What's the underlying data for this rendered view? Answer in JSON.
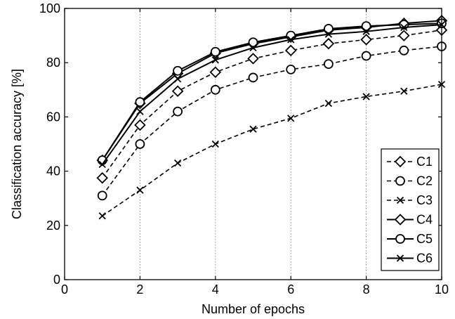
{
  "chart_data": {
    "type": "line",
    "title": "",
    "xlabel": "Number of epochs",
    "ylabel": "Classification accuracy [%]",
    "xlim": [
      0,
      10
    ],
    "ylim": [
      0,
      100
    ],
    "xticks": [
      0,
      2,
      4,
      6,
      8,
      10
    ],
    "yticks": [
      0,
      20,
      40,
      60,
      80,
      100
    ],
    "grid": "vertical dotted at x ticks",
    "legend_position": "lower-right",
    "x": [
      1,
      2,
      3,
      4,
      5,
      6,
      7,
      8,
      9,
      10
    ],
    "series": [
      {
        "name": "C1",
        "line": "dashed",
        "marker": "diamond",
        "values": [
          37.5,
          57,
          69.5,
          76.5,
          81.5,
          84.5,
          87,
          88.5,
          90,
          92
        ]
      },
      {
        "name": "C2",
        "line": "dashed",
        "marker": "circle",
        "values": [
          31,
          50,
          62,
          70,
          74.5,
          77.5,
          79.5,
          82.5,
          84.5,
          86
        ]
      },
      {
        "name": "C3",
        "line": "dashed",
        "marker": "x",
        "values": [
          23.5,
          33,
          43,
          50,
          55.5,
          59.5,
          65,
          67.5,
          69.5,
          72
        ]
      },
      {
        "name": "C4",
        "line": "solid",
        "marker": "diamond",
        "values": [
          44,
          65,
          76,
          83.5,
          87,
          89.5,
          92,
          93,
          94.5,
          95.5
        ]
      },
      {
        "name": "C5",
        "line": "solid",
        "marker": "circle",
        "values": [
          44,
          65.5,
          77,
          84,
          87.5,
          90,
          92.5,
          93.5,
          94,
          94.5
        ]
      },
      {
        "name": "C6",
        "line": "solid",
        "marker": "x",
        "values": [
          42.5,
          62,
          74,
          81,
          85.5,
          88.5,
          90.5,
          91.5,
          93,
          94
        ]
      }
    ]
  }
}
